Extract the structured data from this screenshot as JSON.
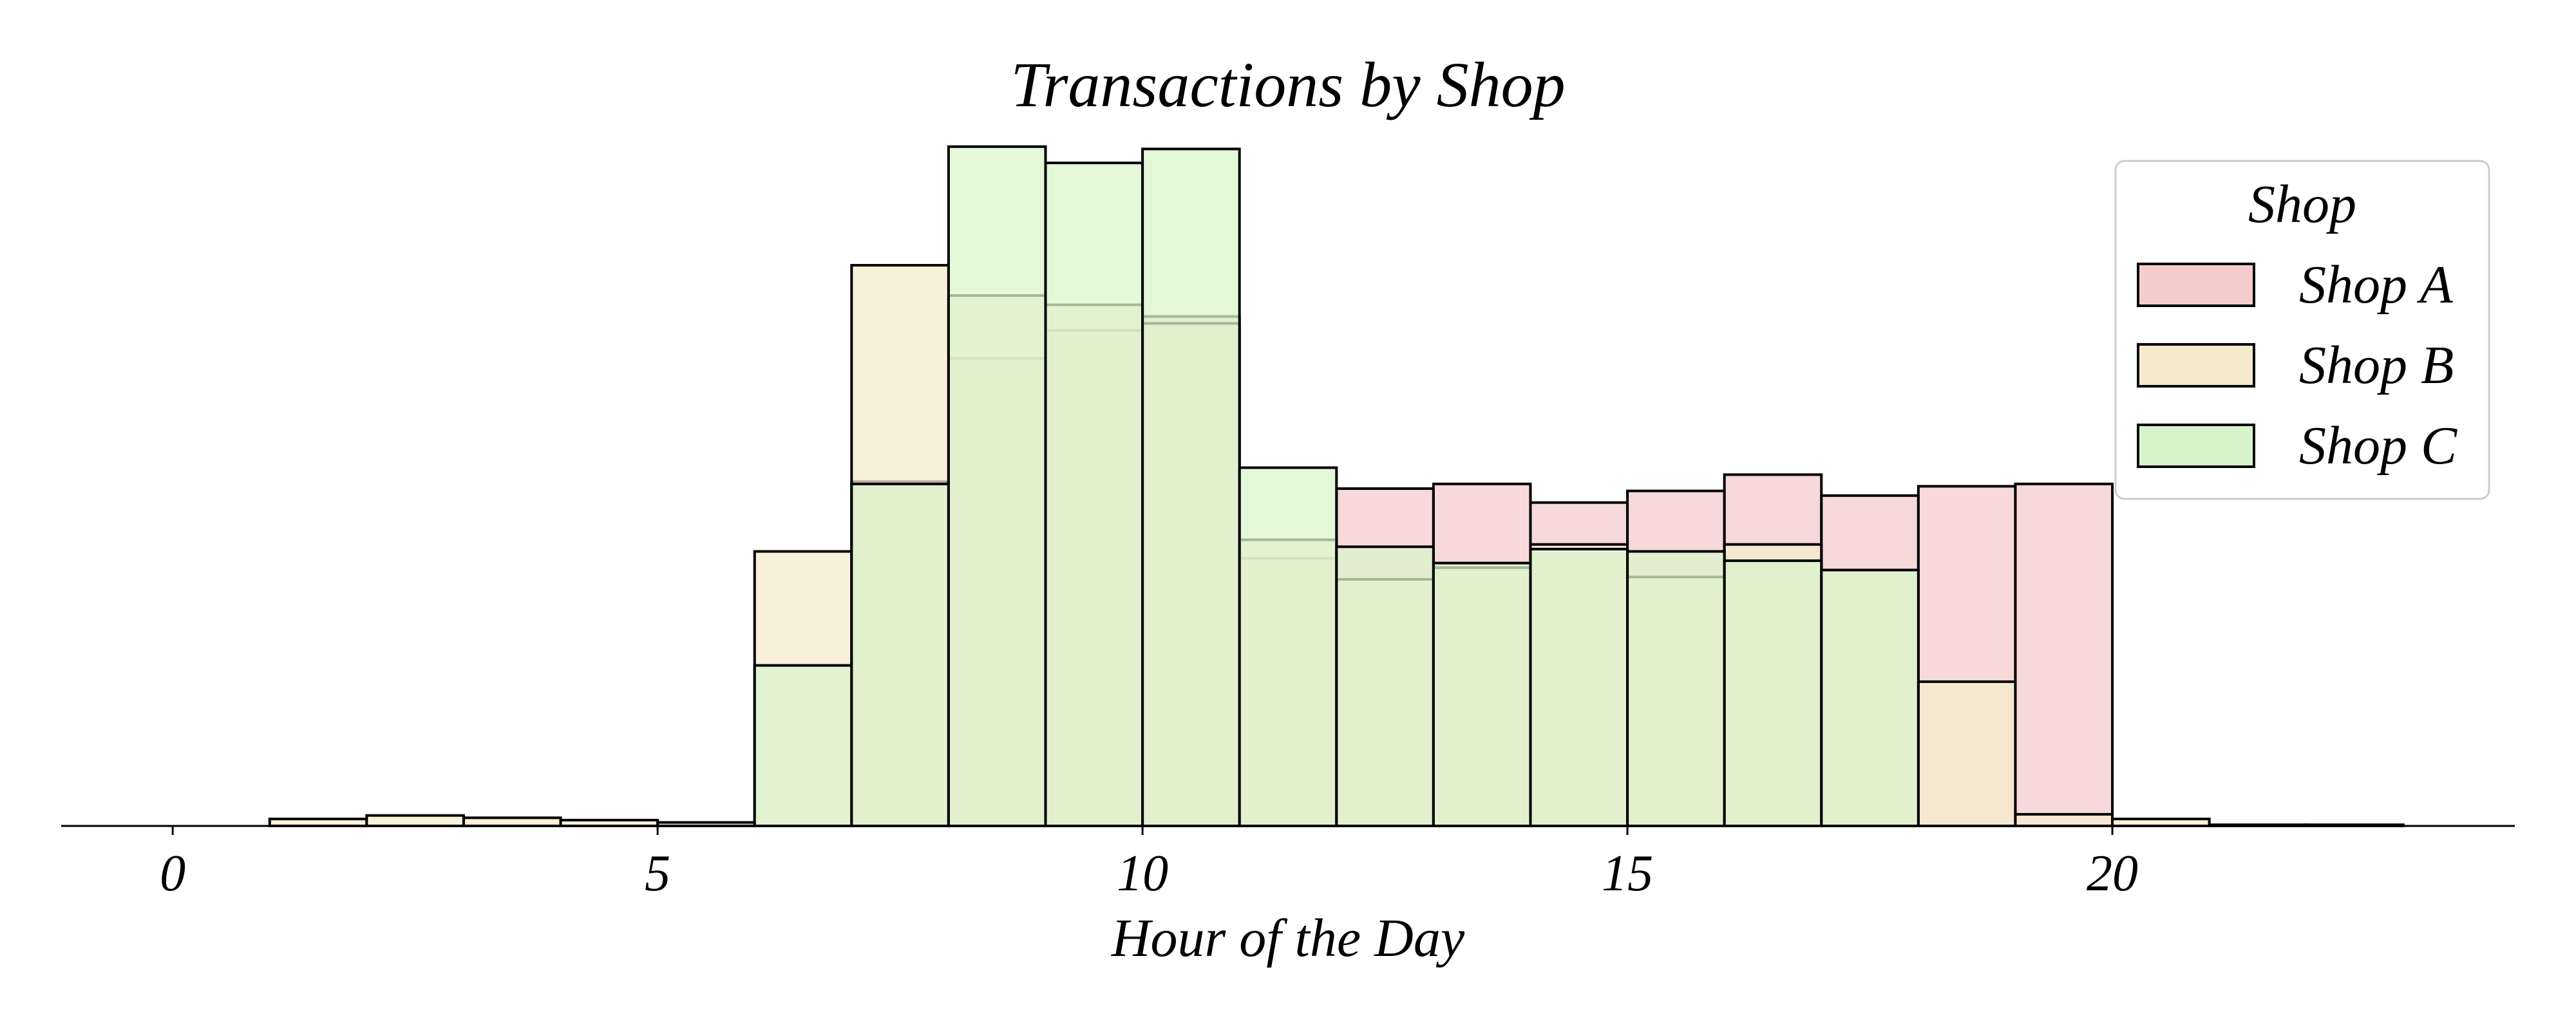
{
  "chart_data": {
    "type": "histogram",
    "title": "Transactions by Shop",
    "xlabel": "Hour of the Day",
    "ylabel": "",
    "xlim": [
      -1.15,
      24.15
    ],
    "ylim": [
      0,
      2900
    ],
    "x_ticks": [
      0,
      5,
      10,
      15,
      20
    ],
    "bin_edges": [
      0,
      1,
      2,
      3,
      4,
      5,
      6,
      7,
      8,
      9,
      10,
      11,
      12,
      13,
      14,
      15,
      16,
      17,
      18,
      19,
      20,
      21,
      22,
      23
    ],
    "y_axis_visible": false,
    "legend": {
      "title": "Shop",
      "position": "upper-right"
    },
    "series": [
      {
        "name": "Shop A",
        "color": "#F4CCCC",
        "counts": [
          0,
          0,
          0,
          0,
          0,
          0,
          0,
          1480,
          2010,
          2130,
          2190,
          1150,
          1450,
          1470,
          1390,
          1440,
          1510,
          1420,
          1460,
          1470,
          0,
          0,
          0
        ]
      },
      {
        "name": "Shop B",
        "color": "#F5EBCC",
        "counts": [
          0,
          30,
          45,
          35,
          25,
          15,
          1180,
          2410,
          2280,
          2240,
          2160,
          1230,
          1060,
          1110,
          1210,
          1070,
          1210,
          1100,
          620,
          50,
          30,
          5,
          5
        ]
      },
      {
        "name": "Shop C",
        "color": "#D9F4CC",
        "counts": [
          0,
          0,
          0,
          0,
          0,
          0,
          690,
          1470,
          2920,
          2850,
          2910,
          1540,
          1200,
          1130,
          1190,
          1180,
          1140,
          1100,
          0,
          0,
          0,
          0,
          0
        ]
      }
    ]
  }
}
